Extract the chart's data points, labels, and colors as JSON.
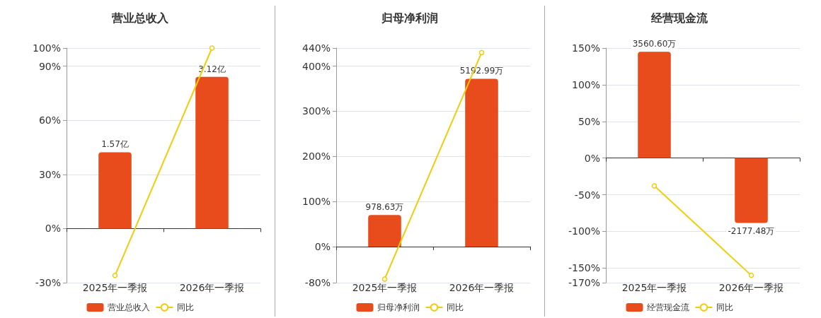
{
  "chart_data": [
    {
      "type": "bar",
      "title": "营业总收入",
      "categories": [
        "2025年一季报",
        "2026年一季报"
      ],
      "legend": "bottom",
      "grid": "y",
      "marker": "circle",
      "series": [
        {
          "name": "营业总收入",
          "axis": "y2",
          "color": "#e84c1c",
          "values": [
            1.57,
            3.12
          ],
          "value_labels": [
            "1.57亿",
            "3.12亿"
          ]
        },
        {
          "name": "同比",
          "type": "line",
          "color": "#f2cc0c",
          "values": [
            -26,
            100
          ]
        }
      ],
      "ylim": [
        -30,
        100
      ],
      "yticks": [
        {
          "value": -30,
          "label": "-30%"
        },
        {
          "value": 0,
          "label": "0%"
        },
        {
          "value": 30,
          "label": "30%"
        },
        {
          "value": 60,
          "label": "60%"
        },
        {
          "value": 90,
          "label": "90%"
        },
        {
          "value": 100,
          "label": "100%"
        }
      ],
      "y2lim": [
        -1.11,
        3.71
      ]
    },
    {
      "type": "bar",
      "title": "归母净利润",
      "categories": [
        "2025年一季报",
        "2026年一季报"
      ],
      "legend": "bottom",
      "grid": "y",
      "marker": "circle",
      "series": [
        {
          "name": "归母净利润",
          "axis": "y2",
          "color": "#e84c1c",
          "values": [
            978.63,
            5192.99
          ],
          "value_labels": [
            "978.63万",
            "5192.99万"
          ]
        },
        {
          "name": "同比",
          "type": "line",
          "color": "#f2cc0c",
          "values": [
            -72,
            430
          ]
        }
      ],
      "ylim": [
        -80,
        440
      ],
      "yticks": [
        {
          "value": -80,
          "label": "-80%"
        },
        {
          "value": 0,
          "label": "0%"
        },
        {
          "value": 100,
          "label": "100%"
        },
        {
          "value": 200,
          "label": "200%"
        },
        {
          "value": 300,
          "label": "300%"
        },
        {
          "value": 400,
          "label": "400%"
        },
        {
          "value": 440,
          "label": "440%"
        }
      ],
      "y2lim": [
        -1117,
        6143
      ]
    },
    {
      "type": "bar",
      "title": "经营现金流",
      "categories": [
        "2025年一季报",
        "2026年一季报"
      ],
      "legend": "bottom",
      "grid": "y",
      "marker": "circle",
      "series": [
        {
          "name": "经营现金流",
          "axis": "y2",
          "color": "#e84c1c",
          "values": [
            3560.6,
            -2177.48
          ],
          "value_labels": [
            "3560.60万",
            "-2177.48万"
          ]
        },
        {
          "name": "同比",
          "type": "line",
          "color": "#f2cc0c",
          "values": [
            -38,
            -160
          ]
        }
      ],
      "ylim": [
        -170,
        150
      ],
      "yticks": [
        {
          "value": -170,
          "label": "-170%"
        },
        {
          "value": -150,
          "label": "-150%"
        },
        {
          "value": -100,
          "label": "-100%"
        },
        {
          "value": -50,
          "label": "-50%"
        },
        {
          "value": 0,
          "label": "0%"
        },
        {
          "value": 50,
          "label": "50%"
        },
        {
          "value": 100,
          "label": "100%"
        },
        {
          "value": 150,
          "label": "150%"
        }
      ],
      "y2lim": [
        -4175,
        3683
      ]
    }
  ]
}
